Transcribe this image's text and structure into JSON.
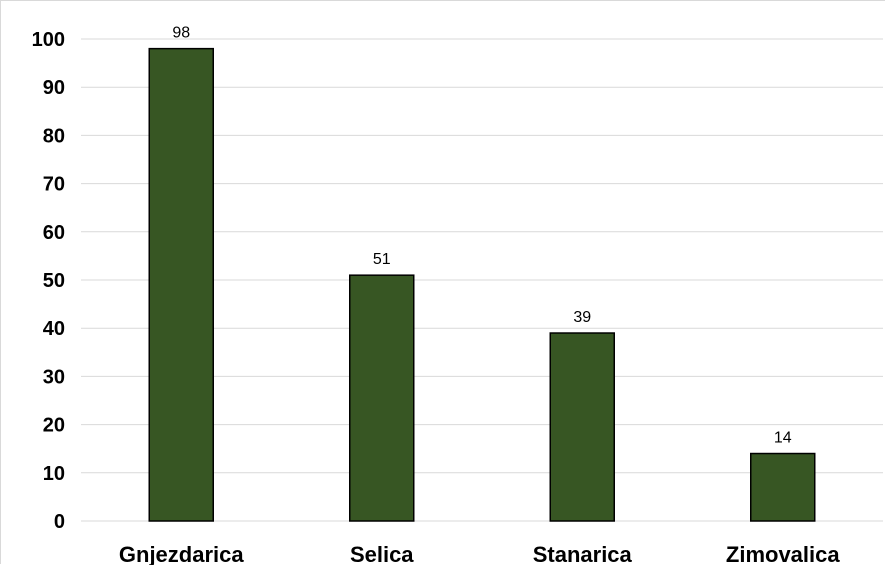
{
  "chart_data": {
    "type": "bar",
    "categories": [
      "Gnjezdarica",
      "Selica",
      "Stanarica",
      "Zimovalica"
    ],
    "values": [
      98,
      51,
      39,
      14
    ],
    "data_labels": [
      "98",
      "51",
      "39",
      "14"
    ],
    "title": "",
    "xlabel": "",
    "ylabel": "",
    "ylim": [
      0,
      100
    ],
    "yticks": [
      0,
      10,
      20,
      30,
      40,
      50,
      60,
      70,
      80,
      90,
      100
    ],
    "ytick_labels": [
      "0",
      "10",
      "20",
      "30",
      "40",
      "50",
      "60",
      "70",
      "80",
      "90",
      "100"
    ],
    "grid": true,
    "legend": "none",
    "bar_color": "#375623",
    "bar_edge_color": "#000000",
    "grid_color": "#d9d9d9"
  }
}
